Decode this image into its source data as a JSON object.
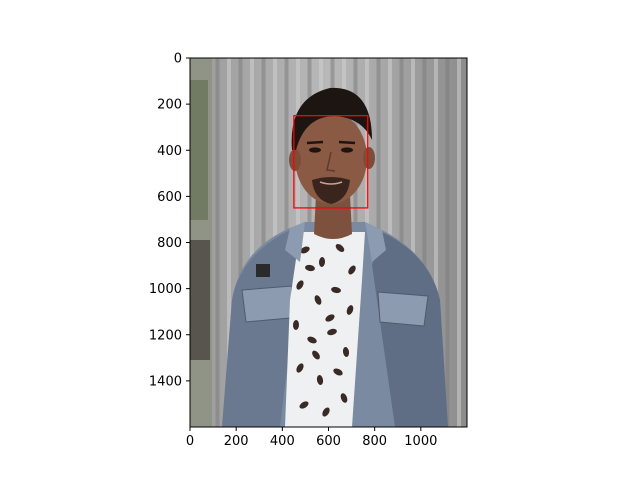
{
  "chart_data": {
    "type": "image",
    "image": {
      "extent_x": [
        0,
        1200
      ],
      "extent_y": [
        0,
        1600
      ],
      "subject": "man in denim jacket over floral white t-shirt in front of corrugated metal wall",
      "colors": {
        "wall_light": "#b9b9b9",
        "wall_dark": "#6f6f6f",
        "skin": "#8a5a44",
        "hair": "#1c1512",
        "jacket": "#7a8aa0",
        "jacket_dark": "#4f5b6c",
        "shirt": "#eef0f2",
        "shirt_pattern": "#3a2a26"
      }
    },
    "annotation": {
      "type": "rectangle",
      "label": "",
      "x_range": [
        450,
        770
      ],
      "y_range": [
        250,
        650
      ],
      "color": "#ff0000"
    },
    "xaxis": {
      "ticks": [
        0,
        200,
        400,
        600,
        800,
        1000
      ],
      "range": [
        0,
        1200
      ]
    },
    "yaxis": {
      "ticks": [
        0,
        200,
        400,
        600,
        800,
        1000,
        1200,
        1400
      ],
      "range": [
        1600,
        0
      ],
      "inverted": true
    },
    "grid": false,
    "title": "",
    "xlabel": "",
    "ylabel": ""
  }
}
